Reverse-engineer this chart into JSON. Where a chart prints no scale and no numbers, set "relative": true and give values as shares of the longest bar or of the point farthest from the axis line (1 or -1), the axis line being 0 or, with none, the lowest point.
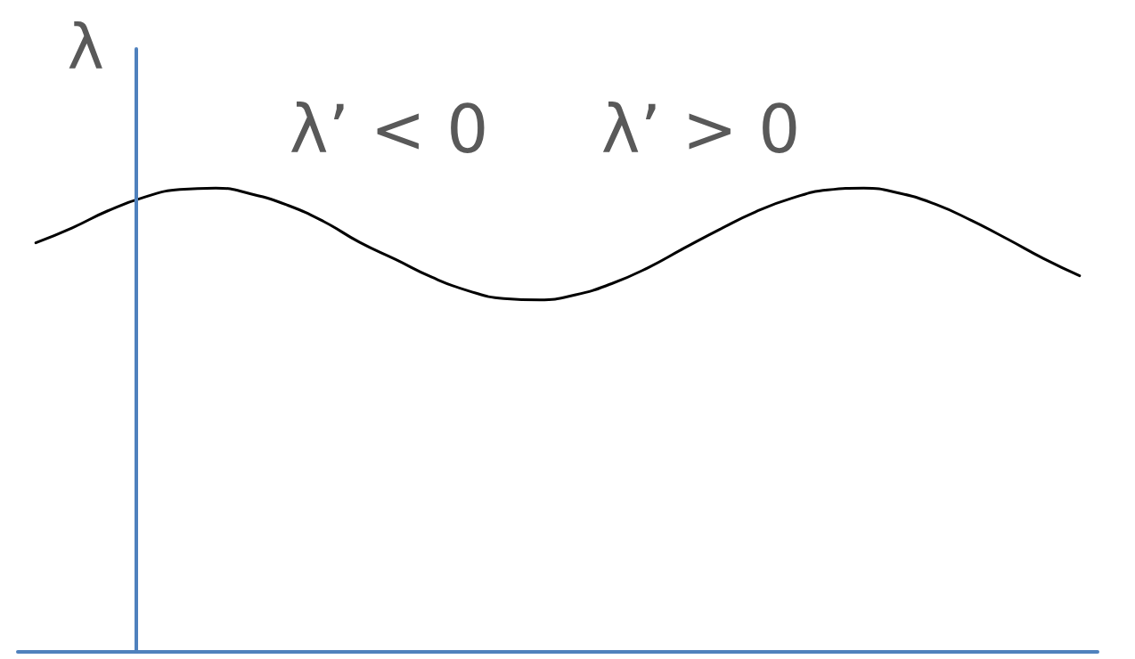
{
  "chart_data": {
    "type": "line",
    "relative": true,
    "ylabel": "λ",
    "annotations": [
      "λ’ < 0",
      "λ’ > 0"
    ],
    "categories": [
      null,
      null,
      null,
      null,
      null,
      null,
      null,
      null,
      null,
      null,
      null,
      null,
      null,
      null,
      null,
      null,
      null,
      null,
      null,
      null,
      null,
      null,
      null,
      null,
      null,
      null,
      null,
      null,
      null,
      null
    ],
    "values": [
      0.882,
      0.914,
      0.951,
      0.98,
      0.997,
      1,
      0.987,
      0.963,
      0.928,
      0.883,
      0.846,
      0.808,
      0.779,
      0.762,
      0.759,
      0.77,
      0.794,
      0.828,
      0.87,
      0.911,
      0.949,
      0.978,
      0.996,
      1,
      0.989,
      0.965,
      0.93,
      0.89,
      0.848,
      0.811
    ],
    "color": "#000000",
    "marker": "none",
    "line_style": "solid"
  }
}
